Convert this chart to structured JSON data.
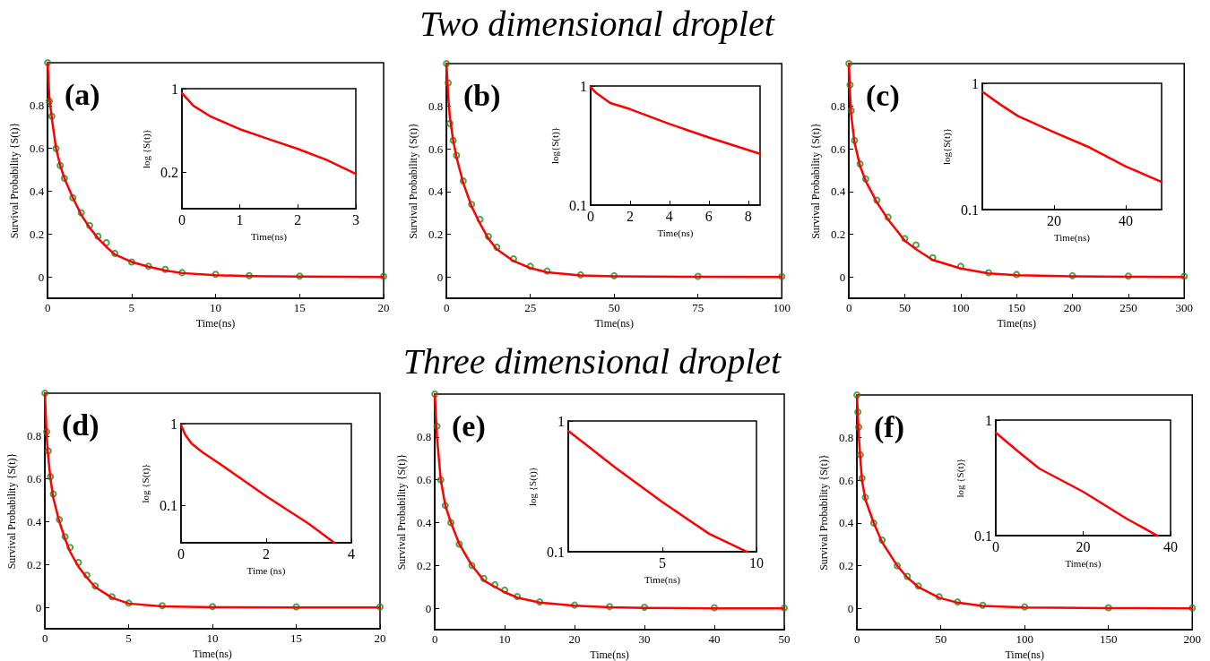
{
  "chart_data": [
    {
      "type": "line",
      "annotations": [
        "(a)"
      ],
      "xlabel": "Time(ns)",
      "ylabel": "Survival Probability {S(t)}",
      "xlim": [
        0,
        20
      ],
      "xticks": [
        0,
        5,
        10,
        15,
        20
      ],
      "ylim": [
        -0.1,
        1
      ],
      "yticks": [
        0,
        0.2,
        0.4,
        0.6,
        0.8
      ],
      "x": [
        0,
        0.1,
        0.25,
        0.5,
        0.75,
        1,
        1.5,
        2,
        2.5,
        3,
        3.5,
        4,
        5,
        6,
        7,
        8,
        10,
        12,
        15,
        20
      ],
      "series": [
        {
          "type": "scatter",
          "marker": "circle",
          "color": "#1e8c1e",
          "values": [
            1.0,
            0.82,
            0.75,
            0.6,
            0.52,
            0.46,
            0.37,
            0.3,
            0.24,
            0.19,
            0.16,
            0.11,
            0.07,
            0.05,
            0.035,
            0.02,
            0.012,
            0.006,
            0.004,
            0.003
          ]
        },
        {
          "type": "line",
          "color": "#ff0000",
          "values": [
            1.0,
            0.84,
            0.74,
            0.6,
            0.52,
            0.46,
            0.37,
            0.29,
            0.23,
            0.18,
            0.14,
            0.105,
            0.07,
            0.048,
            0.03,
            0.018,
            0.008,
            0.004,
            0.002,
            0.0
          ]
        }
      ]
    },
    {
      "type": "line",
      "log": "y",
      "xlabel": "Time(ns)",
      "ylabel": "log {S(t)}",
      "xlim": [
        0,
        3
      ],
      "xticks": [
        0,
        1,
        2,
        3
      ],
      "ylim": [
        0.1,
        1
      ],
      "yticks": [
        0.2,
        1
      ],
      "x": [
        0,
        0.2,
        0.5,
        1,
        1.5,
        2,
        2.5,
        3
      ],
      "series": [
        {
          "color": "#ff0000",
          "values": [
            0.92,
            0.72,
            0.585,
            0.46,
            0.38,
            0.315,
            0.255,
            0.195
          ]
        }
      ]
    },
    {
      "type": "line",
      "title": "Two dimensional droplet",
      "annotations": [
        "(b)"
      ],
      "xlabel": "Time(ns)",
      "ylabel": "Survival Probability {S(t)}",
      "xlim": [
        0,
        100
      ],
      "xticks": [
        0,
        25,
        50,
        75,
        100
      ],
      "ylim": [
        -0.1,
        1
      ],
      "yticks": [
        0,
        0.2,
        0.4,
        0.6,
        0.8
      ],
      "x": [
        0,
        0.5,
        1,
        2,
        3,
        5,
        7.5,
        10,
        12.5,
        15,
        20,
        25,
        30,
        40,
        50,
        75,
        100
      ],
      "series": [
        {
          "type": "scatter",
          "marker": "circle",
          "color": "#1e8c1e",
          "values": [
            1.0,
            0.91,
            0.72,
            0.64,
            0.57,
            0.45,
            0.34,
            0.27,
            0.19,
            0.14,
            0.085,
            0.05,
            0.028,
            0.01,
            0.006,
            0.003,
            0.002
          ]
        },
        {
          "type": "line",
          "color": "#ff0000",
          "values": [
            1.0,
            0.85,
            0.75,
            0.64,
            0.56,
            0.44,
            0.33,
            0.25,
            0.18,
            0.13,
            0.075,
            0.042,
            0.022,
            0.007,
            0.003,
            0.001,
            0.0
          ]
        }
      ]
    },
    {
      "type": "line",
      "log": "y",
      "xlabel": "Time(ns)",
      "ylabel": "log{S(t)}",
      "xlim": [
        0,
        8.6
      ],
      "xticks": [
        0,
        2,
        4,
        6,
        8
      ],
      "ylim": [
        0.1,
        1
      ],
      "yticks": [
        0.1,
        1
      ],
      "x": [
        0,
        0.3,
        1,
        2,
        4,
        6,
        8.6
      ],
      "series": [
        {
          "color": "#ff0000",
          "values": [
            0.98,
            0.87,
            0.72,
            0.64,
            0.48,
            0.37,
            0.27
          ]
        }
      ]
    },
    {
      "type": "line",
      "annotations": [
        "(c)"
      ],
      "xlabel": "Time(ns)",
      "ylabel": "Survival Probability {S(t)}",
      "xlim": [
        0,
        300
      ],
      "xticks": [
        0,
        50,
        100,
        150,
        200,
        250,
        300
      ],
      "ylim": [
        -0.1,
        1
      ],
      "yticks": [
        0,
        0.2,
        0.4,
        0.6,
        0.8
      ],
      "x": [
        0,
        1,
        2,
        5,
        10,
        15,
        25,
        35,
        50,
        60,
        75,
        100,
        125,
        150,
        200,
        250,
        300
      ],
      "series": [
        {
          "type": "scatter",
          "marker": "circle",
          "color": "#1e8c1e",
          "values": [
            1.0,
            0.9,
            0.78,
            0.64,
            0.53,
            0.46,
            0.36,
            0.28,
            0.18,
            0.15,
            0.09,
            0.05,
            0.02,
            0.012,
            0.006,
            0.004,
            0.003
          ]
        },
        {
          "type": "line",
          "color": "#ff0000",
          "values": [
            1.0,
            0.86,
            0.76,
            0.63,
            0.52,
            0.45,
            0.35,
            0.27,
            0.17,
            0.13,
            0.08,
            0.04,
            0.017,
            0.008,
            0.003,
            0.001,
            0.0
          ]
        }
      ]
    },
    {
      "type": "line",
      "log": "y",
      "xlabel": "Time(ns)",
      "ylabel": "log{S(t)}",
      "xlim": [
        0,
        50
      ],
      "xticks": [
        20,
        40
      ],
      "ylim": [
        0.1,
        1
      ],
      "yticks": [
        0.1,
        1
      ],
      "x": [
        0,
        5,
        10,
        20,
        30,
        40,
        50
      ],
      "series": [
        {
          "color": "#ff0000",
          "values": [
            0.86,
            0.68,
            0.55,
            0.41,
            0.31,
            0.22,
            0.166
          ]
        }
      ]
    },
    {
      "type": "line",
      "annotations": [
        "(d)"
      ],
      "xlabel": "Time(ns)",
      "ylabel": "Survival Probability {S(t)}",
      "xlim": [
        0,
        20
      ],
      "xticks": [
        0,
        5,
        10,
        15,
        20
      ],
      "ylim": [
        -0.1,
        1
      ],
      "yticks": [
        0,
        0.2,
        0.4,
        0.6,
        0.8
      ],
      "x": [
        0,
        0.1,
        0.2,
        0.33,
        0.5,
        0.86,
        1.2,
        1.5,
        2,
        2.5,
        3,
        4,
        5,
        7,
        10,
        15,
        20
      ],
      "series": [
        {
          "type": "scatter",
          "marker": "circle",
          "color": "#1e8c1e",
          "values": [
            1.0,
            0.82,
            0.73,
            0.61,
            0.53,
            0.41,
            0.33,
            0.28,
            0.21,
            0.15,
            0.1,
            0.05,
            0.02,
            0.008,
            0.004,
            0.003,
            0.003
          ]
        },
        {
          "type": "line",
          "color": "#ff0000",
          "values": [
            1.0,
            0.8,
            0.7,
            0.6,
            0.51,
            0.4,
            0.32,
            0.26,
            0.19,
            0.14,
            0.095,
            0.045,
            0.018,
            0.005,
            0.001,
            0.0,
            0.0
          ]
        }
      ]
    },
    {
      "type": "line",
      "log": "y",
      "xlabel": "Time (ns)",
      "ylabel": "log {S(t)}",
      "xlim": [
        0,
        4
      ],
      "xticks": [
        0,
        2,
        4
      ],
      "ylim": [
        0.035,
        1
      ],
      "yticks": [
        0.1,
        1
      ],
      "x": [
        0,
        0.1,
        0.25,
        0.5,
        1,
        2,
        3,
        3.6
      ],
      "series": [
        {
          "color": "#ff0000",
          "values": [
            0.97,
            0.73,
            0.57,
            0.45,
            0.3,
            0.13,
            0.06,
            0.035
          ]
        }
      ]
    },
    {
      "type": "line",
      "title": "Three dimensional droplet",
      "annotations": [
        "(e)"
      ],
      "xlabel": "Time(ns)",
      "ylabel": "Survival Probability {S(t)}",
      "xlim": [
        0,
        50
      ],
      "xticks": [
        0,
        10,
        20,
        30,
        40,
        50
      ],
      "ylim": [
        -0.1,
        1
      ],
      "yticks": [
        0,
        0.2,
        0.4,
        0.6,
        0.8
      ],
      "x": [
        0,
        0.3,
        0.85,
        1.5,
        2.3,
        3.5,
        5.3,
        7,
        8.6,
        10,
        11.8,
        15,
        20,
        25,
        30,
        40,
        50
      ],
      "series": [
        {
          "type": "scatter",
          "marker": "circle",
          "color": "#1e8c1e",
          "values": [
            1.0,
            0.85,
            0.6,
            0.48,
            0.4,
            0.3,
            0.2,
            0.14,
            0.11,
            0.085,
            0.055,
            0.03,
            0.015,
            0.008,
            0.005,
            0.003,
            0.002
          ]
        },
        {
          "type": "line",
          "color": "#ff0000",
          "values": [
            1.0,
            0.8,
            0.6,
            0.48,
            0.4,
            0.3,
            0.2,
            0.13,
            0.1,
            0.075,
            0.05,
            0.027,
            0.012,
            0.005,
            0.002,
            0.0,
            0.0
          ]
        }
      ]
    },
    {
      "type": "line",
      "log": "y",
      "xlabel": "Time(ns)",
      "ylabel": "log {S(t)}",
      "xlim": [
        0,
        10
      ],
      "xticks": [
        5,
        10
      ],
      "ylim": [
        0.1,
        1
      ],
      "yticks": [
        0.1,
        1
      ],
      "x": [
        0,
        1,
        2.5,
        5,
        7.5,
        9.5
      ],
      "series": [
        {
          "color": "#ff0000",
          "values": [
            0.84,
            0.65,
            0.44,
            0.24,
            0.137,
            0.1
          ]
        }
      ]
    },
    {
      "type": "line",
      "annotations": [
        "(f)"
      ],
      "xlabel": "Time(ns)",
      "ylabel": "Survival Probability {S(t)}",
      "xlim": [
        0,
        200
      ],
      "xticks": [
        0,
        50,
        100,
        150,
        200
      ],
      "ylim": [
        -0.1,
        1
      ],
      "yticks": [
        0,
        0.2,
        0.4,
        0.6,
        0.8
      ],
      "x": [
        0,
        0.5,
        1,
        2,
        3,
        5,
        10,
        15,
        24,
        30,
        36.6,
        49,
        60,
        75,
        100,
        150,
        200
      ],
      "series": [
        {
          "type": "scatter",
          "marker": "circle",
          "color": "#1e8c1e",
          "values": [
            1.0,
            0.92,
            0.85,
            0.72,
            0.61,
            0.52,
            0.4,
            0.32,
            0.2,
            0.15,
            0.105,
            0.055,
            0.03,
            0.015,
            0.007,
            0.003,
            0.002
          ]
        },
        {
          "type": "line",
          "color": "#ff0000",
          "values": [
            1.0,
            0.9,
            0.82,
            0.7,
            0.6,
            0.51,
            0.4,
            0.31,
            0.2,
            0.145,
            0.1,
            0.05,
            0.027,
            0.012,
            0.004,
            0.001,
            0.0
          ]
        }
      ]
    },
    {
      "type": "line",
      "log": "y",
      "xlabel": "Time(ns)",
      "ylabel": "log {S(t)}",
      "xlim": [
        0,
        40
      ],
      "xticks": [
        0,
        20,
        40
      ],
      "ylim": [
        0.1,
        1
      ],
      "yticks": [
        0.1,
        1
      ],
      "x": [
        0,
        5,
        10,
        20,
        30,
        37
      ],
      "series": [
        {
          "color": "#ff0000",
          "values": [
            0.78,
            0.54,
            0.38,
            0.24,
            0.14,
            0.1
          ]
        }
      ]
    }
  ]
}
